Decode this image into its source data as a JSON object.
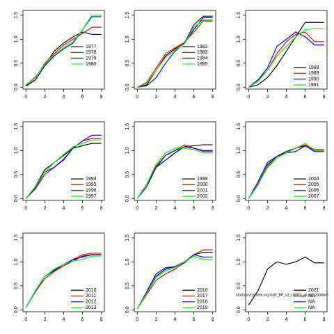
{
  "chart_data": [
    {
      "type": "line",
      "x": [
        0,
        1,
        2,
        3,
        4,
        5,
        6,
        7,
        8
      ],
      "xlim": [
        -0.32,
        8.32
      ],
      "xticks": [
        0,
        2,
        4,
        6,
        8
      ],
      "ylim": [
        -0.04,
        1.6
      ],
      "yticks": [
        {
          "value": 0,
          "label": "0.0"
        },
        0.5,
        {
          "value": 1,
          "label": "1.0"
        },
        1.5
      ],
      "legend": "right",
      "series": [
        {
          "name": "1977",
          "color": "#000000",
          "values": [
            0.03,
            0.15,
            0.45,
            0.75,
            0.92,
            1.05,
            1.15,
            1.1,
            1.1
          ]
        },
        {
          "name": "1978",
          "color": "#ff0000",
          "values": [
            0.05,
            0.2,
            0.5,
            0.7,
            0.88,
            1.0,
            1.12,
            1.25,
            1.25
          ]
        },
        {
          "name": "1979",
          "color": "#0000ff",
          "values": [
            0.02,
            0.15,
            0.45,
            0.65,
            0.8,
            0.92,
            1.2,
            1.47,
            1.47
          ]
        },
        {
          "name": "1980",
          "color": "#00ff00",
          "values": [
            0.05,
            0.22,
            0.48,
            0.68,
            0.82,
            0.95,
            1.2,
            1.5,
            1.5
          ]
        }
      ]
    },
    {
      "type": "line",
      "x": [
        0,
        1,
        2,
        3,
        4,
        5,
        6,
        7,
        8
      ],
      "xlim": [
        -0.32,
        8.32
      ],
      "xticks": [
        0,
        2,
        4,
        6,
        8
      ],
      "ylim": [
        -0.04,
        1.6
      ],
      "yticks": [
        {
          "value": 0,
          "label": "0.0"
        },
        0.5,
        {
          "value": 1,
          "label": "1.0"
        },
        1.5
      ],
      "legend": "right",
      "series": [
        {
          "name": "1982",
          "color": "#000000",
          "values": [
            0,
            0.05,
            0.35,
            0.65,
            0.8,
            0.92,
            1.2,
            1.45,
            1.45
          ]
        },
        {
          "name": "1983",
          "color": "#ff0000",
          "values": [
            0,
            0.1,
            0.4,
            0.7,
            0.82,
            0.93,
            1.15,
            1.38,
            1.38
          ]
        },
        {
          "name": "1984",
          "color": "#0000ff",
          "values": [
            0,
            0.03,
            0.2,
            0.5,
            0.75,
            0.92,
            1.3,
            1.48,
            1.48
          ]
        },
        {
          "name": "1985",
          "color": "#00ff00",
          "values": [
            0,
            0.08,
            0.35,
            0.62,
            0.78,
            0.9,
            1.25,
            1.4,
            1.4
          ]
        }
      ]
    },
    {
      "type": "line",
      "x": [
        0,
        1,
        2,
        3,
        4,
        5,
        6,
        7,
        8
      ],
      "xlim": [
        -0.32,
        8.32
      ],
      "xticks": [
        0,
        2,
        4,
        6,
        8
      ],
      "ylim": [
        -0.04,
        1.6
      ],
      "yticks": [
        {
          "value": 0,
          "label": "0.0"
        },
        0.5,
        {
          "value": 1,
          "label": "1.0"
        },
        1.5
      ],
      "legend": "bottomright",
      "series": [
        {
          "name": "1988",
          "color": "#000000",
          "values": [
            0,
            0.05,
            0.2,
            0.45,
            0.75,
            1.05,
            1.35,
            1.35,
            1.35
          ]
        },
        {
          "name": "1989",
          "color": "#ff0000",
          "values": [
            0,
            0.15,
            0.35,
            0.7,
            0.95,
            1.1,
            1.15,
            0.95,
            0.95
          ]
        },
        {
          "name": "1990",
          "color": "#0000ff",
          "values": [
            0,
            0.15,
            0.4,
            0.85,
            1.0,
            1.15,
            1.05,
            0.88,
            0.88
          ]
        },
        {
          "name": "1991",
          "color": "#00ff00",
          "values": [
            0,
            0.12,
            0.35,
            0.65,
            0.85,
            1.05,
            1.2,
            1.22,
            1.22
          ]
        }
      ]
    },
    {
      "type": "line",
      "x": [
        0,
        1,
        2,
        3,
        4,
        5,
        6,
        7,
        8
      ],
      "xlim": [
        -0.32,
        8.32
      ],
      "xticks": [
        0,
        2,
        4,
        6,
        8
      ],
      "ylim": [
        -0.04,
        1.6
      ],
      "yticks": [
        {
          "value": 0,
          "label": "0.0"
        },
        0.5,
        {
          "value": 1,
          "label": "1.0"
        },
        1.5
      ],
      "legend": "bottomright",
      "series": [
        {
          "name": "1994",
          "color": "#000000",
          "values": [
            0,
            0.25,
            0.6,
            0.75,
            0.9,
            1.05,
            1.1,
            1.15,
            1.15
          ]
        },
        {
          "name": "1995",
          "color": "#ff0000",
          "values": [
            0,
            0.2,
            0.5,
            0.65,
            0.8,
            1.05,
            1.2,
            1.25,
            1.25
          ]
        },
        {
          "name": "1996",
          "color": "#0000ff",
          "values": [
            0,
            0.22,
            0.55,
            0.65,
            0.82,
            1.05,
            1.2,
            1.32,
            1.32
          ]
        },
        {
          "name": "1997",
          "color": "#00ff00",
          "values": [
            0,
            0.25,
            0.55,
            0.75,
            0.92,
            1.08,
            1.15,
            1.22,
            1.22
          ]
        }
      ]
    },
    {
      "type": "line",
      "x": [
        0,
        1,
        2,
        3,
        4,
        5,
        6,
        7,
        8
      ],
      "xlim": [
        -0.32,
        8.32
      ],
      "xticks": [
        0,
        2,
        4,
        6,
        8
      ],
      "ylim": [
        -0.04,
        1.6
      ],
      "yticks": [
        {
          "value": 0,
          "label": "0.0"
        },
        0.5,
        {
          "value": 1,
          "label": "1.0"
        },
        1.5
      ],
      "legend": "bottomright",
      "series": [
        {
          "name": "1999",
          "color": "#000000",
          "values": [
            0,
            0.3,
            0.65,
            0.8,
            0.95,
            1.08,
            1.1,
            1.12,
            1.12
          ]
        },
        {
          "name": "2000",
          "color": "#ff0000",
          "values": [
            0,
            0.3,
            0.68,
            0.9,
            1.0,
            1.12,
            1.05,
            0.98,
            0.98
          ]
        },
        {
          "name": "2001",
          "color": "#0000ff",
          "values": [
            0,
            0.25,
            0.65,
            0.9,
            1.0,
            1.08,
            1.05,
            1.0,
            1.0
          ]
        },
        {
          "name": "2002",
          "color": "#00ff00",
          "values": [
            0,
            0.3,
            0.72,
            0.95,
            1.05,
            1.05,
            1.02,
            0.95,
            0.95
          ]
        }
      ]
    },
    {
      "type": "line",
      "x": [
        0,
        1,
        2,
        3,
        4,
        5,
        6,
        7,
        8
      ],
      "xlim": [
        -0.32,
        8.32
      ],
      "xticks": [
        0,
        2,
        4,
        6,
        8
      ],
      "ylim": [
        -0.04,
        1.6
      ],
      "yticks": [
        {
          "value": 0,
          "label": "0.0"
        },
        0.5,
        {
          "value": 1,
          "label": "1.0"
        },
        1.5
      ],
      "legend": "bottomright",
      "series": [
        {
          "name": "2004",
          "color": "#000000",
          "values": [
            0,
            0.3,
            0.7,
            0.88,
            0.98,
            1.05,
            1.1,
            1.0,
            1.0
          ]
        },
        {
          "name": "2005",
          "color": "#ff0000",
          "values": [
            0,
            0.3,
            0.65,
            0.85,
            0.95,
            1.05,
            1.12,
            1.02,
            1.02
          ]
        },
        {
          "name": "2006",
          "color": "#0000ff",
          "values": [
            0,
            0.35,
            0.75,
            0.88,
            0.95,
            0.98,
            1.1,
            0.98,
            0.98
          ]
        },
        {
          "name": "2007",
          "color": "#00ff00",
          "values": [
            0,
            0.28,
            0.68,
            0.85,
            0.95,
            1.05,
            1.15,
            1.0,
            1.0
          ]
        }
      ]
    },
    {
      "type": "line",
      "x": [
        0,
        1,
        2,
        3,
        4,
        5,
        6,
        7,
        8
      ],
      "xlim": [
        -0.32,
        8.32
      ],
      "xticks": [
        0,
        2,
        4,
        6,
        8
      ],
      "ylim": [
        -0.04,
        1.6
      ],
      "yticks": [
        {
          "value": 0,
          "label": "0.0"
        },
        0.5,
        {
          "value": 1,
          "label": "1.0"
        },
        1.5
      ],
      "legend": "bottomright",
      "series": [
        {
          "name": "2010",
          "color": "#000000",
          "values": [
            0.05,
            0.4,
            0.7,
            0.82,
            0.92,
            1.02,
            1.12,
            1.15,
            1.15
          ]
        },
        {
          "name": "2011",
          "color": "#ff0000",
          "values": [
            0.05,
            0.38,
            0.65,
            0.8,
            0.92,
            1.05,
            1.15,
            1.18,
            1.18
          ]
        },
        {
          "name": "2012",
          "color": "#0000ff",
          "values": [
            0.05,
            0.38,
            0.7,
            0.83,
            0.95,
            1.05,
            1.1,
            1.15,
            1.15
          ]
        },
        {
          "name": "2013",
          "color": "#00ff00",
          "values": [
            0.05,
            0.4,
            0.7,
            0.85,
            0.95,
            1.02,
            1.05,
            1.12,
            1.12
          ]
        }
      ]
    },
    {
      "type": "line",
      "x": [
        0,
        1,
        2,
        3,
        4,
        5,
        6,
        7,
        8
      ],
      "xlim": [
        -0.32,
        8.32
      ],
      "xticks": [
        0,
        2,
        4,
        6,
        8
      ],
      "ylim": [
        -0.04,
        1.6
      ],
      "yticks": [
        {
          "value": 0,
          "label": "0.0"
        },
        0.5,
        {
          "value": 1,
          "label": "1.0"
        },
        1.5
      ],
      "legend": "bottomright",
      "series": [
        {
          "name": "2016",
          "color": "#000000",
          "values": [
            0.02,
            0.35,
            0.7,
            0.85,
            0.9,
            1.0,
            1.15,
            1.2,
            1.2
          ]
        },
        {
          "name": "2017",
          "color": "#ff0000",
          "values": [
            0.02,
            0.32,
            0.62,
            0.75,
            0.85,
            0.98,
            1.15,
            1.25,
            1.25
          ]
        },
        {
          "name": "2018",
          "color": "#0000ff",
          "values": [
            0.02,
            0.38,
            0.75,
            0.88,
            0.9,
            0.98,
            1.15,
            1.1,
            1.1
          ]
        },
        {
          "name": "2019",
          "color": "#00ff00",
          "values": [
            0.02,
            0.35,
            0.68,
            0.82,
            0.88,
            1.0,
            1.12,
            1.05,
            1.05
          ]
        }
      ]
    },
    {
      "type": "line",
      "x": [
        0,
        1,
        2,
        3,
        4,
        5,
        6,
        7,
        8
      ],
      "xlim": [
        -0.32,
        8.32
      ],
      "xticks": [
        0,
        2,
        4,
        6,
        8
      ],
      "ylim": [
        -0.04,
        1.6
      ],
      "yticks": [
        {
          "value": 0,
          "label": "0.0"
        },
        0.5,
        {
          "value": 1,
          "label": "1.0"
        },
        1.5
      ],
      "legend": "bottomright",
      "annotation": "stockassessment.org GoR_BP_v2_r16973_plt.sc2r2bb8dde",
      "series": [
        {
          "name": "2021",
          "color": "#000000",
          "values": [
            0.1,
            0.4,
            0.85,
            1.0,
            0.95,
            1.0,
            1.1,
            0.98,
            0.98
          ]
        },
        {
          "name": "NA",
          "color": "#ff0000",
          "values": [
            null,
            null,
            null,
            null,
            null,
            null,
            null,
            null,
            null
          ]
        },
        {
          "name": "NA",
          "color": "#0000ff",
          "values": [
            null,
            null,
            null,
            null,
            null,
            null,
            null,
            null,
            null
          ]
        },
        {
          "name": "NA",
          "color": "#00ff00",
          "values": [
            null,
            null,
            null,
            null,
            null,
            null,
            null,
            null,
            null
          ]
        }
      ]
    }
  ]
}
